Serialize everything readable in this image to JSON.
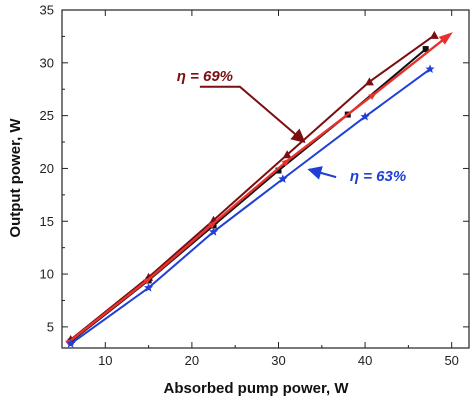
{
  "chart_data": {
    "type": "line",
    "xlabel": "Absorbed pump power, W",
    "ylabel": "Output power, W",
    "xlim": [
      5,
      52
    ],
    "ylim": [
      3,
      35
    ],
    "x_ticks": [
      10,
      20,
      30,
      40,
      50
    ],
    "y_ticks": [
      5,
      10,
      15,
      20,
      25,
      30,
      35
    ],
    "grid": false,
    "series": [
      {
        "color": "#7a0e10",
        "marker": "triangle",
        "points": [
          [
            6,
            3.8
          ],
          [
            15,
            9.7
          ],
          [
            22.5,
            15.1
          ],
          [
            31,
            21.3
          ],
          [
            40.5,
            28.2
          ],
          [
            48,
            32.6
          ]
        ]
      },
      {
        "color": "#111111",
        "marker": "square",
        "points": [
          [
            6,
            3.6
          ],
          [
            15,
            9.4
          ],
          [
            22.5,
            14.6
          ],
          [
            30,
            19.8
          ],
          [
            38,
            25.1
          ],
          [
            47,
            31.3
          ]
        ]
      },
      {
        "color": "#e8312f",
        "marker": "arrow",
        "points": [
          [
            6,
            3.7
          ],
          [
            15,
            9.5
          ],
          [
            22.5,
            14.8
          ],
          [
            31,
            20.7
          ],
          [
            41,
            27.0
          ],
          [
            49.5,
            32.5
          ]
        ]
      },
      {
        "color": "#1f3fd6",
        "marker": "star",
        "points": [
          [
            6,
            3.4
          ],
          [
            15,
            8.7
          ],
          [
            22.5,
            14.0
          ],
          [
            30.5,
            19.0
          ],
          [
            40,
            24.9
          ],
          [
            47.5,
            29.4
          ]
        ]
      }
    ],
    "annotations": [
      {
        "text": "η = 69%",
        "color": "#7a0e10",
        "x": 21.5,
        "y": 28.3,
        "arrow_to": [
          33,
          22.5
        ]
      },
      {
        "text": "η = 63%",
        "color": "#1f3fd6",
        "x": 41.5,
        "y": 18.8,
        "arrow_to": [
          33.5,
          19.9
        ]
      }
    ]
  }
}
